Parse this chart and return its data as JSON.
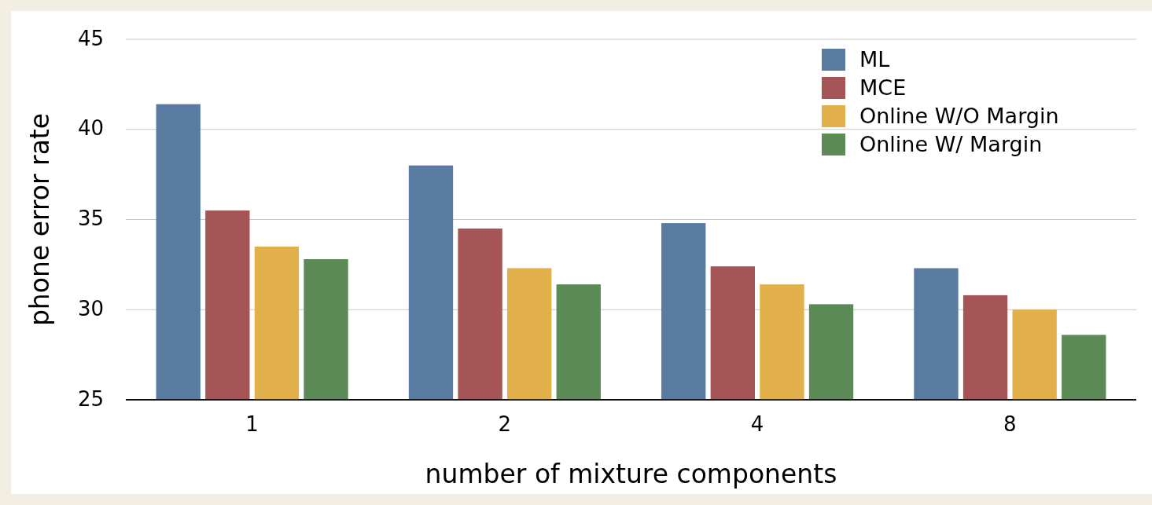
{
  "chart_data": {
    "type": "bar",
    "xlabel": "number of mixture components",
    "ylabel": "phone error rate",
    "categories": [
      "1",
      "2",
      "4",
      "8"
    ],
    "series": [
      {
        "name": "ML",
        "color": "#5a7ba1",
        "values": [
          41.4,
          38.0,
          34.8,
          32.3
        ]
      },
      {
        "name": "MCE",
        "color": "#a65556",
        "values": [
          35.5,
          34.5,
          32.4,
          30.8
        ]
      },
      {
        "name": "Online W/O Margin",
        "color": "#e1b04a",
        "values": [
          33.5,
          32.3,
          31.4,
          30.0
        ]
      },
      {
        "name": "Online W/ Margin",
        "color": "#5b8a57",
        "values": [
          32.8,
          31.4,
          30.3,
          28.6
        ]
      }
    ],
    "ylim": [
      25,
      45
    ],
    "yticks": [
      25,
      30,
      35,
      40,
      45
    ],
    "grid": "y",
    "legend": "top right"
  }
}
